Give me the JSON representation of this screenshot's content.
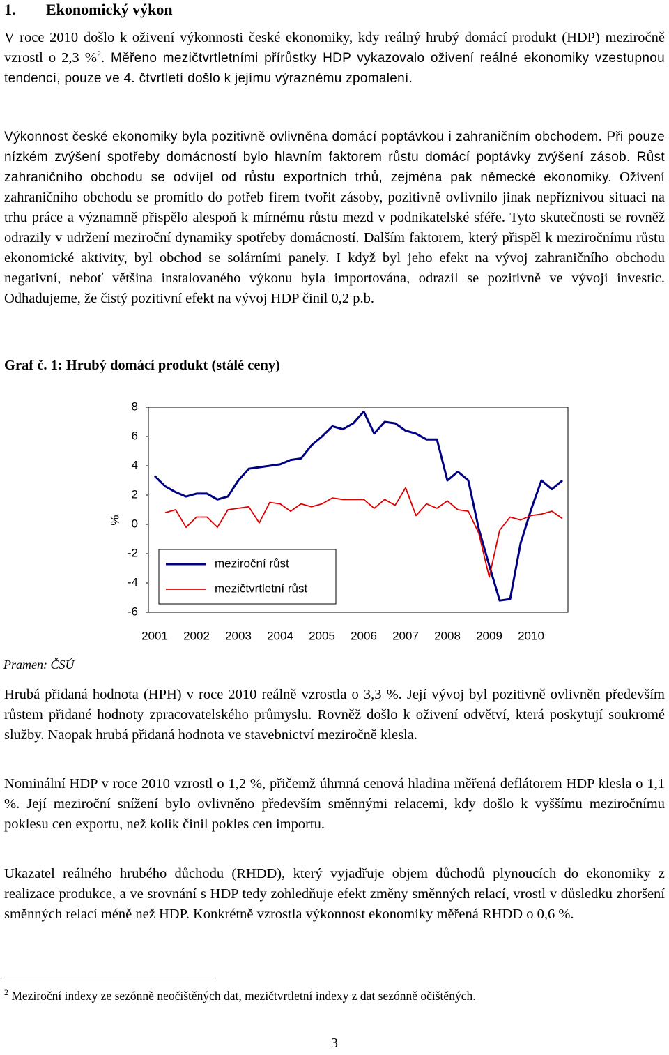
{
  "heading": {
    "number": "1.",
    "title": "Ekonomický výkon"
  },
  "paragraphs_top": [
    [
      "V roce 2010 došlo k oživení výkonnosti české ekonomiky, kdy reálný hrubý domácí produkt (HDP) meziročně vzrostl o 2,3 %",
      "2",
      ". Měřeno mezičtvrtletními přírůstky HDP vykazovalo oživení reálné ekonomiky vzestupnou tendencí, pouze ve 4. čtvrtletí došlo k jejímu výraznému zpomalení."
    ],
    [
      "Výkonnost české ekonomiky byla pozitivně ovlivněna domácí poptávkou i zahraničním obchodem. Při pouze nízkém zvýšení spotřeby domácností bylo hlavním faktorem růstu domácí poptávky zvýšení zásob. Růst zahraničního obchodu se odvíjel od růstu exportních trhů, zejména pak německé ekonomiky.",
      " Oživení zahraničního obchodu se promítlo do potřeb firem tvořit zásoby, pozitivně ovlivnilo jinak nepříznivou situaci na trhu práce a významně přispělo alespoň k mírnému růstu mezd v podnikatelské sféře. Tyto skutečnosti se rovněž odrazily v udržení meziroční dynamiky spotřeby domácností. Dalším faktorem, který přispěl k meziročnímu růstu ekonomické aktivity, byl obchod se solárními panely. I když byl jeho efekt na vývoj zahraničního obchodu negativní, neboť většina instalovaného výkonu byla importována, odrazil se pozitivně ve vývoji investic. Odhadujeme, že čistý pozitivní efekt na vývoj HDP činil 0,2 p.b."
    ]
  ],
  "chart_title": "Graf č. 1: Hrubý domácí produkt (stálé ceny)",
  "chart_data": {
    "type": "line",
    "ylabel": "%",
    "categories": [
      "2001",
      null,
      null,
      null,
      "2002",
      null,
      null,
      null,
      "2003",
      null,
      null,
      null,
      "2004",
      null,
      null,
      null,
      "2005",
      null,
      null,
      null,
      "2006",
      null,
      null,
      null,
      "2007",
      null,
      null,
      null,
      "2008",
      null,
      null,
      null,
      "2009",
      null,
      null,
      null,
      "2010",
      null,
      null,
      null
    ],
    "series": [
      {
        "name": "meziroční růst",
        "color": "#000080",
        "values": [
          3.3,
          2.6,
          2.2,
          1.9,
          2.1,
          2.1,
          1.7,
          1.9,
          3.0,
          3.8,
          3.9,
          4.0,
          4.1,
          4.4,
          4.5,
          5.4,
          6.0,
          6.7,
          6.5,
          6.9,
          7.7,
          6.2,
          7.0,
          6.9,
          6.4,
          6.2,
          5.8,
          5.8,
          3.0,
          3.6,
          3.0,
          -0.3,
          -2.8,
          -5.2,
          -5.1,
          -1.3,
          1.0,
          3.0,
          2.4,
          3.0
        ]
      },
      {
        "name": "mezičtvrtletní růst",
        "color": "#e00000",
        "values": [
          null,
          0.8,
          1.0,
          -0.2,
          0.5,
          0.5,
          -0.2,
          1.0,
          1.1,
          1.2,
          0.1,
          1.5,
          1.4,
          0.9,
          1.4,
          1.2,
          1.4,
          1.8,
          1.7,
          1.7,
          1.7,
          1.1,
          1.7,
          1.3,
          2.5,
          0.6,
          1.4,
          1.1,
          1.6,
          1.0,
          0.9,
          -0.6,
          -3.6,
          -0.4,
          0.5,
          0.3,
          0.6,
          0.7,
          0.9,
          0.4
        ]
      }
    ],
    "ylim": [
      -6,
      8
    ],
    "yticks": [
      -6,
      -4,
      -2,
      0,
      2,
      4,
      6,
      8
    ],
    "grid": false
  },
  "source": "Pramen: ČSÚ",
  "paragraphs_bottom": [
    "Hrubá přidaná hodnota (HPH) v roce 2010 reálně vzrostla o 3,3 %. Její vývoj byl pozitivně ovlivněn především růstem přidané hodnoty zpracovatelského průmyslu. Rovněž došlo k oživení odvětví, která poskytují soukromé služby. Naopak hrubá přidaná hodnota ve stavebnictví meziročně klesla.",
    "Nominální HDP v roce 2010 vzrostl o 1,2 %, přičemž úhrnná cenová hladina měřená deflátorem HDP klesla o 1,1 %. Její meziroční snížení bylo ovlivněno především směnnými relacemi, kdy došlo k vyššímu meziročnímu poklesu cen exportu, než kolik činil pokles cen importu.",
    "Ukazatel reálného hrubého důchodu (RHDD), který vyjadřuje objem důchodů plynoucích do ekonomiky z realizace produkce, a ve srovnání s HDP tedy zohledňuje efekt změny směnných relací, vrostl v důsledku zhoršení směnných relací méně než HDP. Konkrétně vzrostla výkonnost ekonomiky měřená RHDD o 0,6 %."
  ],
  "footnote": {
    "mark": "2",
    "text": "Meziroční indexy ze sezónně neočištěných dat, mezičtvrtletní indexy z dat sezónně očištěných."
  },
  "page_number": "3"
}
